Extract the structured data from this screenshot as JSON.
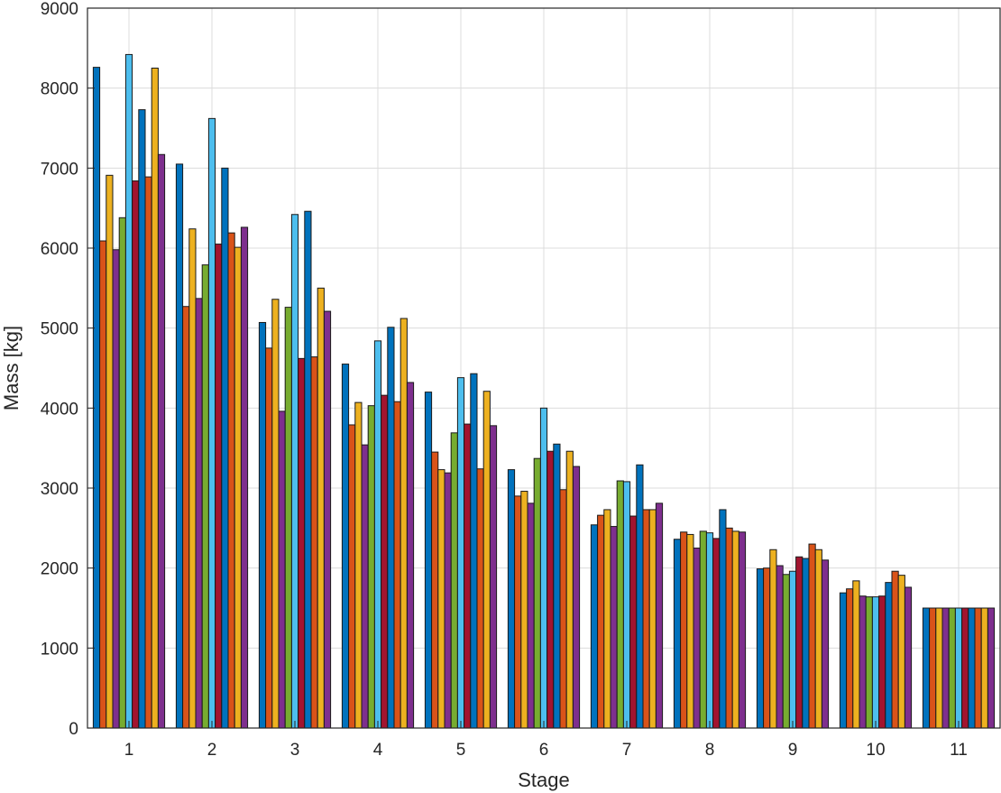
{
  "chart_data": {
    "type": "bar",
    "title": "",
    "xlabel": "Stage",
    "ylabel": "Mass [kg]",
    "ylim": [
      0,
      9000
    ],
    "yticks": [
      "0",
      "1000",
      "2000",
      "3000",
      "4000",
      "5000",
      "6000",
      "7000",
      "8000",
      "9000"
    ],
    "categories": [
      "1",
      "2",
      "3",
      "4",
      "5",
      "6",
      "7",
      "8",
      "9",
      "10",
      "11"
    ],
    "grid": true,
    "legend": "none",
    "series_colors": [
      "#0072BD",
      "#D95319",
      "#EDB120",
      "#7E2F8E",
      "#77AC30",
      "#4DBEEE",
      "#A2142F",
      "#0072BD",
      "#D95319",
      "#EDB120",
      "#7E2F8E"
    ],
    "series": [
      {
        "values": [
          8260,
          7050,
          5070,
          4550,
          4200,
          3230,
          2540,
          2360,
          1990,
          1690,
          1500
        ]
      },
      {
        "values": [
          6090,
          5270,
          4750,
          3790,
          3450,
          2900,
          2660,
          2450,
          2000,
          1740,
          1500
        ]
      },
      {
        "values": [
          6910,
          6240,
          5360,
          4070,
          3230,
          2960,
          2730,
          2420,
          2230,
          1840,
          1500
        ]
      },
      {
        "values": [
          5980,
          5370,
          3960,
          3540,
          3190,
          2810,
          2520,
          2250,
          2030,
          1650,
          1500
        ]
      },
      {
        "values": [
          6380,
          5790,
          5260,
          4030,
          3690,
          3370,
          3090,
          2460,
          1920,
          1640,
          1500
        ]
      },
      {
        "values": [
          8420,
          7620,
          6420,
          4840,
          4380,
          4000,
          3080,
          2440,
          1960,
          1640,
          1500
        ]
      },
      {
        "values": [
          6840,
          6050,
          4620,
          4160,
          3800,
          3460,
          2650,
          2370,
          2140,
          1650,
          1500
        ]
      },
      {
        "values": [
          7730,
          7000,
          6460,
          5010,
          4430,
          3550,
          3290,
          2730,
          2120,
          1820,
          1500
        ]
      },
      {
        "values": [
          6890,
          6190,
          4640,
          4080,
          3240,
          2980,
          2730,
          2500,
          2300,
          1960,
          1500
        ]
      },
      {
        "values": [
          8250,
          6010,
          5500,
          5120,
          4210,
          3460,
          2730,
          2460,
          2230,
          1910,
          1500
        ]
      },
      {
        "values": [
          7170,
          6260,
          5210,
          4320,
          3780,
          3270,
          2810,
          2450,
          2100,
          1760,
          1500
        ]
      }
    ]
  }
}
